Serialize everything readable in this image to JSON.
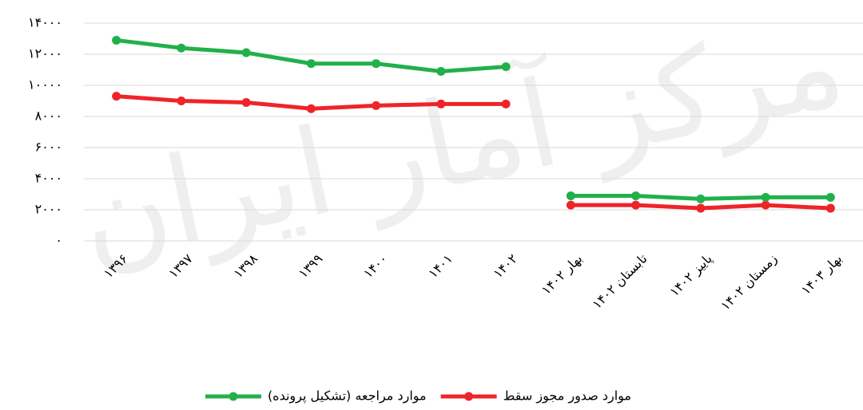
{
  "chart_data": {
    "type": "line",
    "watermark": "مرکز آمار ایران",
    "categories": [
      "۱۳۹۶",
      "۱۳۹۷",
      "۱۳۹۸",
      "۱۳۹۹",
      "۱۴۰۰",
      "۱۴۰۱",
      "۱۴۰۲",
      "بهار ۱۴۰۲",
      "تابستان ۱۴۰۲",
      "پاییز ۱۴۰۲",
      "زمستان ۱۴۰۲",
      "بهار ۱۴۰۳"
    ],
    "line_breaks": [
      7
    ],
    "series": [
      {
        "name": "موارد صدور مجوز سقط",
        "color": "#ee2428",
        "values": [
          9300,
          9000,
          8900,
          8500,
          8700,
          8800,
          8800,
          2300,
          2300,
          2100,
          2300,
          2100
        ]
      },
      {
        "name": "موارد مراجعه (تشکیل پرونده)",
        "color": "#22b04b",
        "values": [
          12900,
          12400,
          12100,
          11400,
          11400,
          10900,
          11200,
          2900,
          2900,
          2700,
          2800,
          2800
        ]
      }
    ],
    "ylim": [
      0,
      14000
    ],
    "yticks": [
      {
        "value": 0,
        "label": "۰"
      },
      {
        "value": 2000,
        "label": "۲۰۰۰"
      },
      {
        "value": 4000,
        "label": "۴۰۰۰"
      },
      {
        "value": 6000,
        "label": "۶۰۰۰"
      },
      {
        "value": 8000,
        "label": "۸۰۰۰"
      },
      {
        "value": 10000,
        "label": "۱۰۰۰۰"
      },
      {
        "value": 12000,
        "label": "۱۲۰۰۰"
      },
      {
        "value": 14000,
        "label": "۱۴۰۰۰"
      }
    ],
    "grid": true,
    "legend": "bottom"
  }
}
